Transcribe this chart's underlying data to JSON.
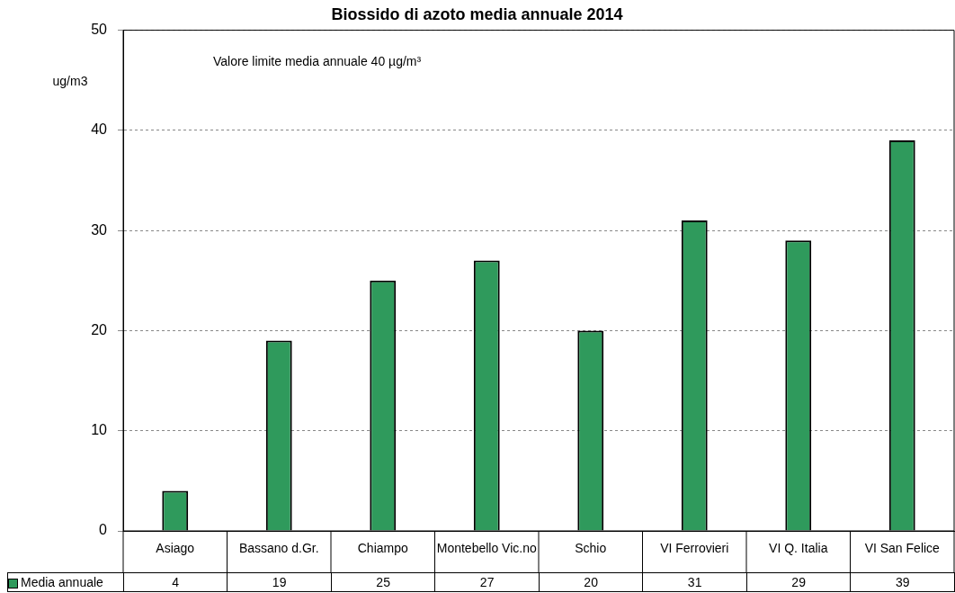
{
  "chart_data": {
    "type": "bar",
    "title": "Biossido di azoto media annuale 2014",
    "ylabel": "ug/m3",
    "annotations": [
      "Valore limite media annuale 40 µg/m³"
    ],
    "categories": [
      "Asiago",
      "Bassano d.Gr.",
      "Chiampo",
      "Montebello Vic.no",
      "Schio",
      "VI Ferrovieri",
      "VI Q. Italia",
      "VI San Felice"
    ],
    "series": [
      {
        "name": "Media annuale",
        "color": "#2f9a5c",
        "values": [
          4,
          19,
          25,
          27,
          20,
          31,
          29,
          39
        ]
      }
    ],
    "ylim": [
      0,
      50
    ],
    "yticks": [
      0,
      10,
      20,
      30,
      40,
      50
    ],
    "grid": "y",
    "legend": "bottom left",
    "data_labels": true
  }
}
